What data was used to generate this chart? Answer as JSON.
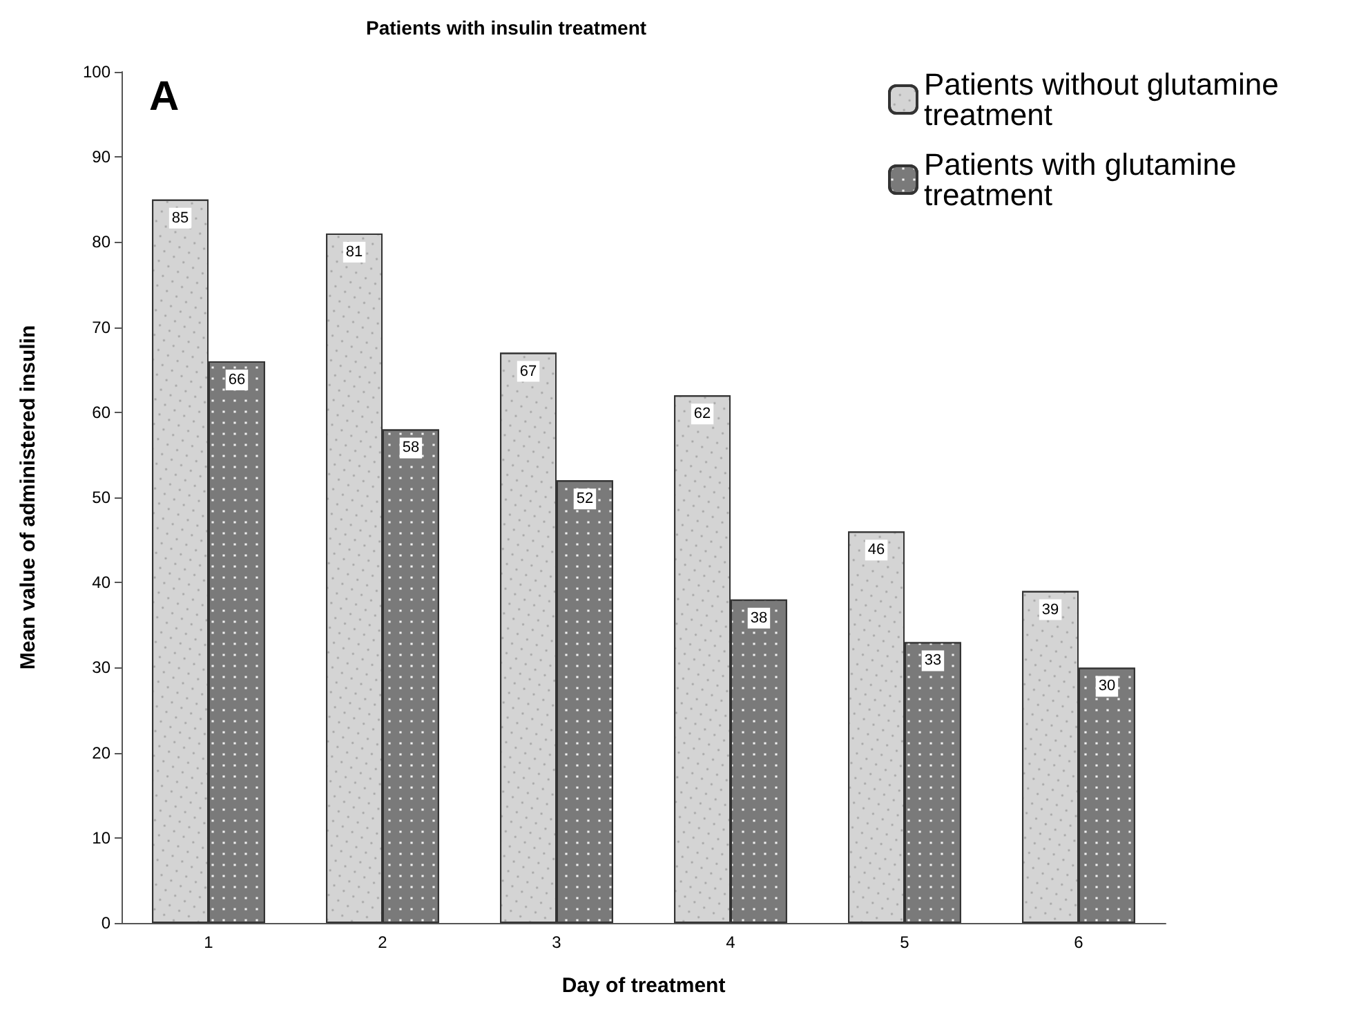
{
  "chart_data": {
    "type": "bar",
    "title": "Patients with insulin treatment",
    "xlabel": "Day of treatment",
    "ylabel": "Mean value of administered insulin",
    "categories": [
      "1",
      "2",
      "3",
      "4",
      "5",
      "6"
    ],
    "series": [
      {
        "name": "Patients without glutamine treatment",
        "color": "#d4d4d4",
        "values": [
          85,
          81,
          67,
          62,
          46,
          39
        ]
      },
      {
        "name": "Patients with glutamine treatment",
        "color": "#7a7a7a",
        "values": [
          66,
          58,
          52,
          38,
          33,
          30
        ]
      }
    ],
    "ylim": [
      0,
      100
    ],
    "yticks": [
      0,
      10,
      20,
      30,
      40,
      50,
      60,
      70,
      80,
      90,
      100
    ],
    "grid": false,
    "legend": "top right",
    "data_labels": true,
    "annotations": [
      "A"
    ]
  }
}
